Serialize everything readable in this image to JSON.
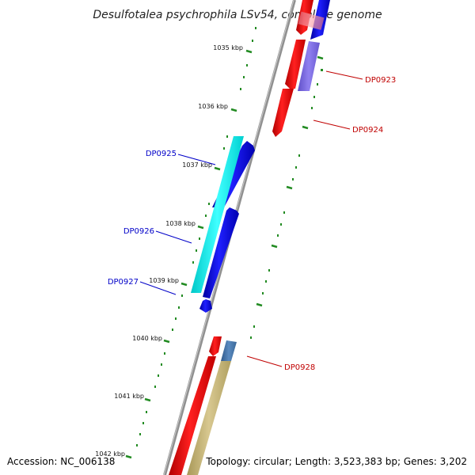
{
  "title": "Desulfotalea psychrophila LSv54, complete genome",
  "accession": "Accession: NC_006138",
  "topology": "Topology: circular; Length: 3,523,383 bp; Genes: 3,202",
  "colors": {
    "backbone": "#808080",
    "forward_gene": "#ff0000",
    "reverse_gene": "#0000ff",
    "reverse_gene_light": "#7b68ee",
    "cyan_gene": "#00ffff",
    "olive_gene": "#c8b878",
    "steel_gene": "#4682b4",
    "tick": "#228b22",
    "label_red": "#c00000",
    "label_blue": "#0000c8"
  },
  "ticks": [
    {
      "label": "1035 kbp"
    },
    {
      "label": "1036 kbp"
    },
    {
      "label": "1037 kbp"
    },
    {
      "label": "1038 kbp"
    },
    {
      "label": "1039 kbp"
    },
    {
      "label": "1040 kbp"
    },
    {
      "label": "1041 kbp"
    },
    {
      "label": "1042 kbp"
    }
  ],
  "gene_labels": [
    {
      "name": "DP0923",
      "strand": "forward"
    },
    {
      "name": "DP0924",
      "strand": "forward"
    },
    {
      "name": "DP0925",
      "strand": "reverse"
    },
    {
      "name": "DP0926",
      "strand": "reverse"
    },
    {
      "name": "DP0927",
      "strand": "reverse"
    },
    {
      "name": "DP0928",
      "strand": "forward"
    }
  ]
}
